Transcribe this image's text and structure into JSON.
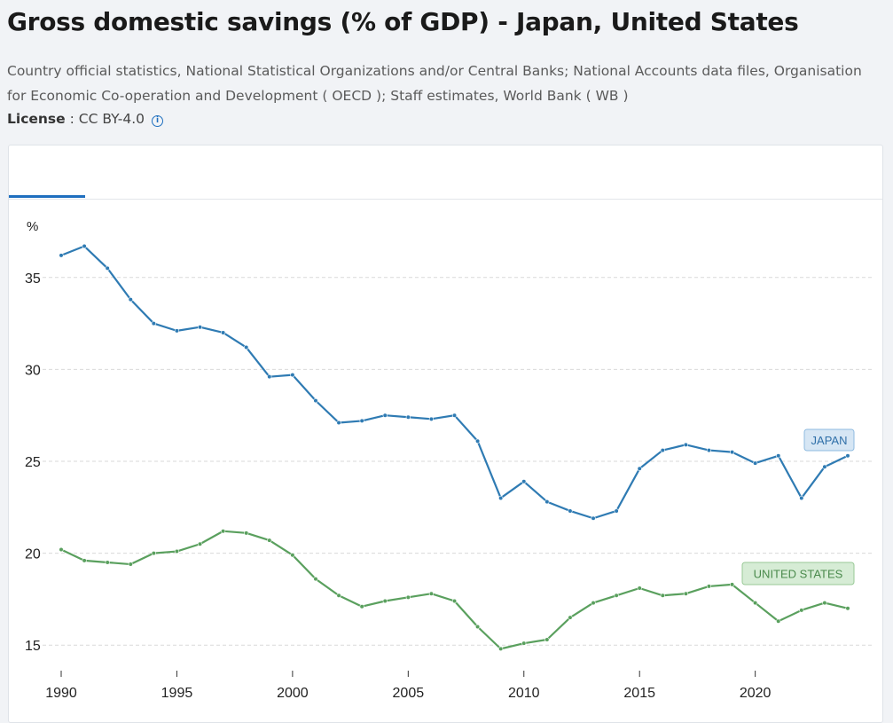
{
  "page": {
    "title": "Gross domestic savings (% of GDP) - Japan, United States",
    "source": "Country official statistics, National Statistical Organizations and/or Central Banks; National Accounts data files, Organisation for Economic Co-operation and Development ( OECD ); Staff estimates, World Bank ( WB )",
    "license_label": "License",
    "license_sep": " : ",
    "license_value": "CC BY-4.0",
    "info_icon": "i"
  },
  "colors": {
    "japan": "#2f7bb3",
    "us": "#5aa05e",
    "accent": "#1f6fbf"
  },
  "chart_data": {
    "type": "line",
    "title": "Gross domestic savings (% of GDP) - Japan, United States",
    "ylabel": "%",
    "xlabel": "",
    "ylim": [
      12,
      38
    ],
    "yticks": [
      15,
      20,
      25,
      30,
      35
    ],
    "xticks": [
      1990,
      1995,
      2000,
      2005,
      2010,
      2015,
      2020
    ],
    "grid": true,
    "x": [
      1990,
      1991,
      1992,
      1993,
      1994,
      1995,
      1996,
      1997,
      1998,
      1999,
      2000,
      2001,
      2002,
      2003,
      2004,
      2005,
      2006,
      2007,
      2008,
      2009,
      2010,
      2011,
      2012,
      2013,
      2014,
      2015,
      2016,
      2017,
      2018,
      2019,
      2020,
      2021,
      2022,
      2023,
      2024
    ],
    "series": [
      {
        "name": "JAPAN",
        "key": "japan",
        "values": [
          36.2,
          36.7,
          35.5,
          33.8,
          32.5,
          32.1,
          32.3,
          32.0,
          31.2,
          29.6,
          29.7,
          28.3,
          27.1,
          27.2,
          27.5,
          27.4,
          27.3,
          27.5,
          26.1,
          23.0,
          23.9,
          22.8,
          22.3,
          21.9,
          22.3,
          24.6,
          25.6,
          25.9,
          25.6,
          25.5,
          24.9,
          25.3,
          23.0,
          24.7,
          25.3
        ]
      },
      {
        "name": "UNITED STATES",
        "key": "us",
        "values": [
          20.2,
          19.6,
          19.5,
          19.4,
          20.0,
          20.1,
          20.5,
          21.2,
          21.1,
          20.7,
          19.9,
          18.6,
          17.7,
          17.1,
          17.4,
          17.6,
          17.8,
          17.4,
          16.0,
          14.8,
          15.1,
          15.3,
          16.5,
          17.3,
          17.7,
          18.1,
          17.7,
          17.8,
          18.2,
          18.3,
          17.3,
          16.3,
          16.9,
          17.3,
          17.0
        ]
      }
    ]
  }
}
